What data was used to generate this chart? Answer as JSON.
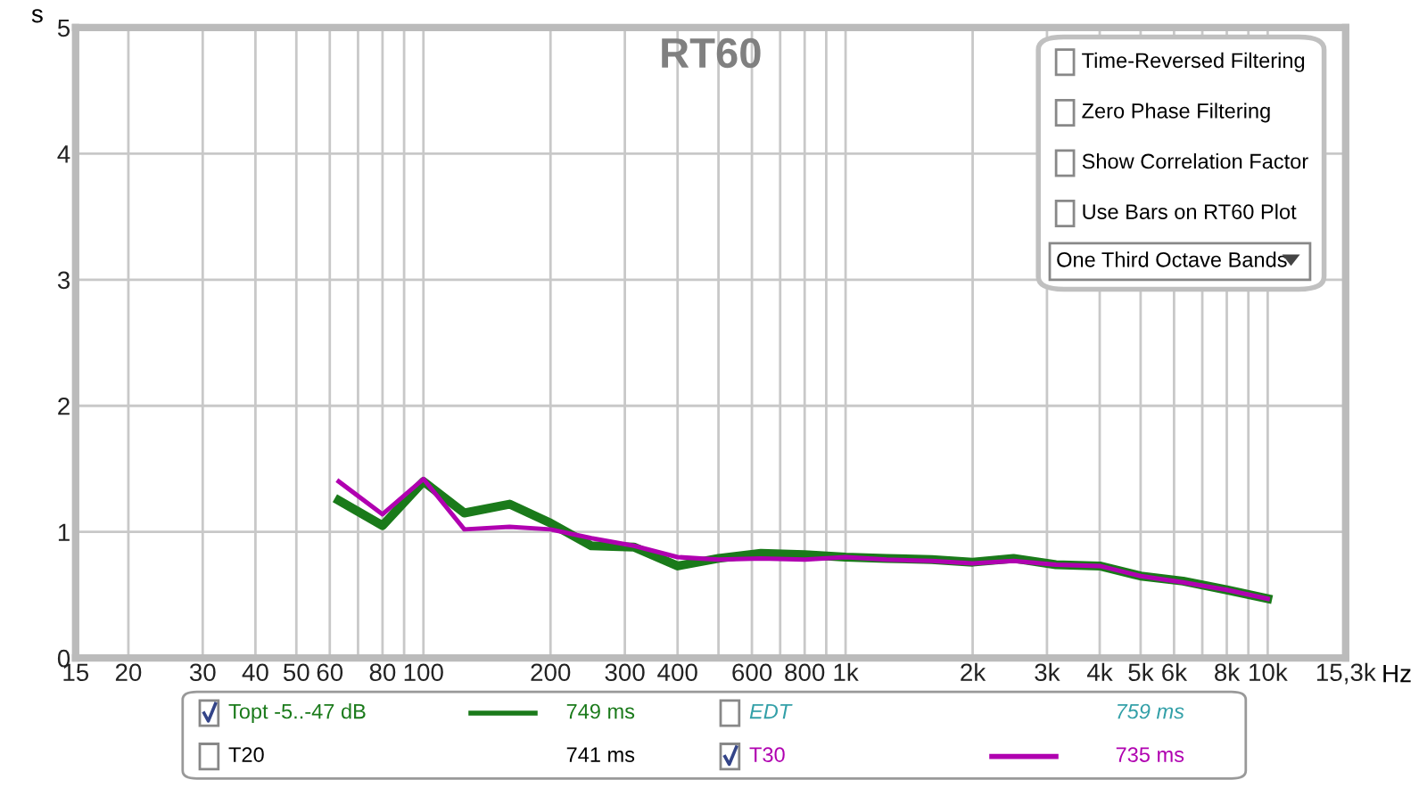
{
  "chart_data": {
    "type": "line",
    "title": "RT60",
    "xlabel": "Hz",
    "ylabel": "s",
    "x": [
      63,
      80,
      100,
      125,
      160,
      200,
      250,
      315,
      400,
      500,
      630,
      800,
      1000,
      1250,
      1600,
      2000,
      2500,
      3150,
      4000,
      5000,
      6300,
      8000,
      10000
    ],
    "series": [
      {
        "name": "Topt -5..-47 dB",
        "color": "#1a7a1a",
        "values": [
          1.25,
          1.05,
          1.4,
          1.15,
          1.22,
          1.07,
          0.89,
          0.88,
          0.73,
          0.79,
          0.83,
          0.82,
          0.8,
          0.79,
          0.78,
          0.76,
          0.79,
          0.74,
          0.73,
          0.65,
          0.61,
          0.54,
          0.47
        ]
      },
      {
        "name": "T30",
        "color": "#b000b0",
        "values": [
          1.4,
          1.14,
          1.42,
          1.02,
          1.04,
          1.02,
          0.95,
          0.89,
          0.8,
          0.78,
          0.79,
          0.78,
          0.8,
          0.78,
          0.77,
          0.75,
          0.77,
          0.74,
          0.73,
          0.65,
          0.6,
          0.54,
          0.47
        ]
      }
    ],
    "log": "x",
    "xlim": [
      15,
      15300
    ],
    "xticks": [
      15,
      20,
      30,
      40,
      50,
      60,
      {
        "value": 70,
        "label": null
      },
      80,
      {
        "value": 90,
        "label": null
      },
      100,
      200,
      300,
      400,
      {
        "value": 500,
        "label": null
      },
      600,
      {
        "value": 700,
        "label": null
      },
      800,
      {
        "value": 900,
        "label": null
      },
      {
        "value": 1000,
        "label": "1k"
      },
      {
        "value": 2000,
        "label": "2k"
      },
      {
        "value": 3000,
        "label": "3k"
      },
      {
        "value": 4000,
        "label": "4k"
      },
      {
        "value": 5000,
        "label": "5k"
      },
      {
        "value": 6000,
        "label": "6k"
      },
      {
        "value": 7000,
        "label": null
      },
      {
        "value": 8000,
        "label": "8k"
      },
      {
        "value": 9000,
        "label": null
      },
      {
        "value": 10000,
        "label": "10k"
      },
      {
        "value": 15300,
        "label": "15,3k"
      }
    ],
    "ylim": [
      0,
      5
    ],
    "yticks": [
      0,
      1,
      2,
      3,
      4,
      5
    ],
    "grid": true,
    "legend": "bottom",
    "line_style": "solid",
    "marker": "none",
    "annotations": [
      "Time-Reversed Filtering",
      "Zero Phase Filtering",
      "Show Correlation Factor",
      "Use Bars on RT60 Plot",
      "One Third Octave Bands",
      "749 ms",
      "EDT",
      "759 ms",
      "T20",
      "741 ms",
      "735 ms"
    ]
  }
}
